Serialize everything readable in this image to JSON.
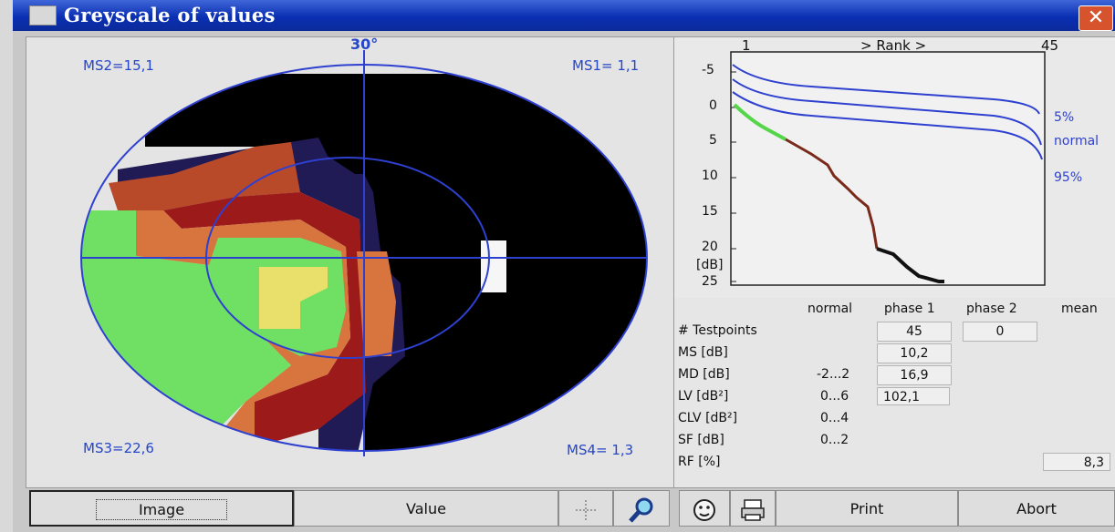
{
  "window": {
    "title": "Greyscale of values",
    "close_label": "✕"
  },
  "field": {
    "degree_label": "30°",
    "ms_quadrants": {
      "top_left": "MS2=15,1",
      "top_right": "MS1= 1,1",
      "bottom_left": "MS3=22,6",
      "bottom_right": "MS4= 1,3"
    },
    "colors": {
      "black": "#000000",
      "navy": "#201a55",
      "dark_red": "#9c1a1a",
      "red_brown": "#b84a2a",
      "orange": "#d8743e",
      "green": "#6fe063",
      "yellow": "#e8e06a",
      "white": "#f6f6f6"
    }
  },
  "bebie_curve": {
    "rank_start": "1",
    "rank_label": "> Rank >",
    "rank_end": "45",
    "y_ticks": [
      "-5",
      "0",
      "5",
      "10",
      "15",
      "20",
      "25"
    ],
    "y_unit": "[dB]",
    "legend": [
      "5%",
      "normal",
      "95%"
    ]
  },
  "stats_table": {
    "headers": {
      "normal": "normal",
      "phase1": "phase 1",
      "phase2": "phase 2",
      "mean": "mean"
    },
    "rows": [
      {
        "label": "# Testpoints",
        "normal": "",
        "phase1": "45",
        "phase2": "0",
        "mean": ""
      },
      {
        "label": "MS [dB]",
        "normal": "",
        "phase1": "10,2",
        "phase2": "",
        "mean": ""
      },
      {
        "label": "MD [dB]",
        "normal": "-2...2",
        "phase1": "16,9",
        "phase2": "",
        "mean": ""
      },
      {
        "label": "LV [dB²]",
        "normal": "0...6",
        "phase1": "102,1",
        "phase2": "",
        "mean": ""
      },
      {
        "label": "CLV [dB²]",
        "normal": "0...4",
        "phase1": "",
        "phase2": "",
        "mean": ""
      },
      {
        "label": "SF [dB]",
        "normal": "0...2",
        "phase1": "",
        "phase2": "",
        "mean": ""
      },
      {
        "label": "RF [%]",
        "normal": "",
        "phase1": "",
        "phase2": "",
        "mean": "8,3"
      }
    ]
  },
  "toolbar": {
    "image_label": "Image",
    "value_label": "Value",
    "print_label": "Print",
    "abort_label": "Abort"
  }
}
